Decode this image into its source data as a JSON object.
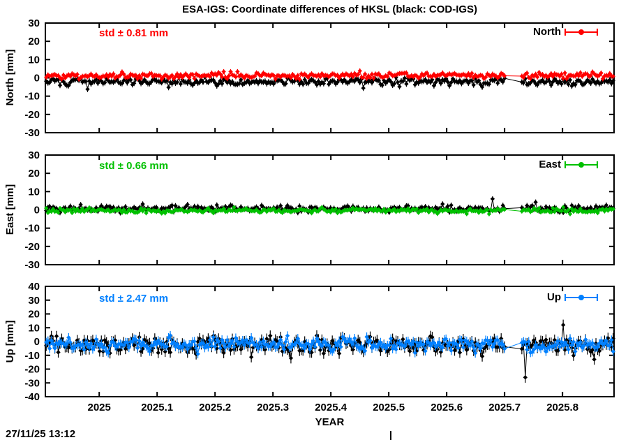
{
  "page": {
    "title": "ESA-IGS: Coordinate differences of HKSL (black: COD-IGS)",
    "timestamp": "27/11/25 13:12",
    "background": "#ffffff"
  },
  "chart_data": {
    "type": "scatter",
    "title": "ESA-IGS: Coordinate differences of HKSL (black: COD-IGS)",
    "xlabel": "YEAR",
    "grid": false,
    "legend_position": "top-right-inside",
    "x": {
      "min": 2024.907,
      "max": 2025.889,
      "tick_values": [
        2025,
        2025.1,
        2025.2,
        2025.3,
        2025.4,
        2025.5,
        2025.6,
        2025.7,
        2025.8
      ],
      "tick_labels": [
        "2025",
        "2025.1",
        "2025.2",
        "2025.3",
        "2025.4",
        "2025.5",
        "2025.6",
        "2025.7",
        "2025.8"
      ],
      "n_points": 330,
      "gap": [
        2025.703,
        2025.728
      ]
    },
    "panels": [
      {
        "id": "north",
        "ylabel": "North [mm]",
        "ylim": [
          -30,
          30
        ],
        "ytick_values": [
          -30,
          -20,
          -10,
          0,
          10,
          20,
          30
        ],
        "std_label": "std ± 0.81 mm",
        "std_value_mm": 0.81,
        "legend_label": "North",
        "accent_color": "#ff0000",
        "series": [
          {
            "name": "COD-IGS",
            "color": "#000000",
            "mean": -2.0,
            "std": 1.0,
            "trend": 0,
            "seed": 101,
            "outliers": [
              [
                2024.98,
                -6.2
              ],
              [
                2025.12,
                -5.2
              ],
              [
                2025.455,
                -5.6
              ],
              [
                2025.66,
                -5.0
              ]
            ]
          },
          {
            "name": "ESA-IGS",
            "color": "#ff0000",
            "mean": 1.0,
            "std": 0.81,
            "trend": 0.5,
            "seed": 102,
            "outliers": [
              [
                2025.45,
                3.8
              ]
            ]
          }
        ]
      },
      {
        "id": "east",
        "ylabel": "East [mm]",
        "ylim": [
          -30,
          30
        ],
        "ytick_values": [
          -30,
          -20,
          -10,
          0,
          10,
          20,
          30
        ],
        "std_label": "std ± 0.66 mm",
        "std_value_mm": 0.66,
        "legend_label": "East",
        "accent_color": "#00c000",
        "series": [
          {
            "name": "COD-IGS",
            "color": "#000000",
            "mean": 0.7,
            "std": 0.9,
            "trend": 0,
            "seed": 201,
            "outliers": [
              [
                2025.68,
                6.0
              ],
              [
                2025.755,
                4.2
              ]
            ]
          },
          {
            "name": "ESA-IGS",
            "color": "#00c000",
            "mean": -0.4,
            "std": 0.66,
            "trend": 0,
            "seed": 202,
            "outliers": []
          }
        ]
      },
      {
        "id": "up",
        "ylabel": "Up [mm]",
        "ylim": [
          -40,
          40
        ],
        "ytick_values": [
          -40,
          -30,
          -20,
          -10,
          0,
          10,
          20,
          30,
          40
        ],
        "std_label": "std ± 2.47 mm",
        "std_value_mm": 2.47,
        "legend_label": "Up",
        "accent_color": "#0080ff",
        "series": [
          {
            "name": "COD-IGS",
            "color": "#000000",
            "mean": -2.6,
            "std": 3.1,
            "trend": 0,
            "seed": 301,
            "outliers": [
              [
                2025.33,
                -12
              ],
              [
                2025.735,
                -26
              ],
              [
                2025.8,
                12
              ],
              [
                2025.855,
                -13
              ]
            ]
          },
          {
            "name": "ESA-IGS",
            "color": "#0080ff",
            "mean": -2.0,
            "std": 2.47,
            "trend": 0,
            "seed": 302,
            "outliers": [
              [
                2025.17,
                -9
              ]
            ]
          }
        ]
      }
    ]
  }
}
